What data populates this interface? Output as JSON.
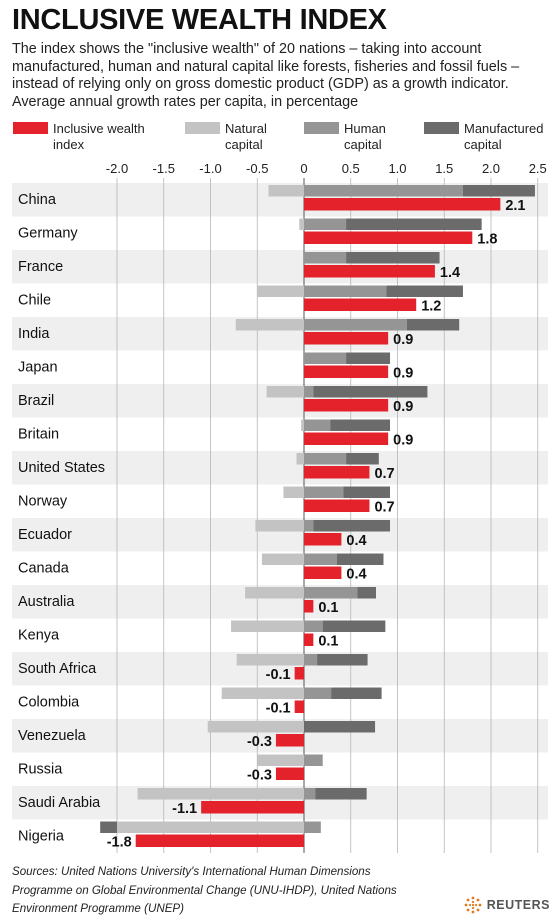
{
  "header": {
    "title": "INCLUSIVE WEALTH INDEX",
    "subtitle": "The index shows the \"inclusive wealth\" of 20 nations – taking into account manufactured, human and natural capital like forests, fisheries and fossil fuels – instead of relying only on gross domestic product (GDP) as a growth indicator. Average annual growth rates per capita, in percentage"
  },
  "footer": {
    "source": "Sources: United Nations University's International Human Dimensions Programme on Global Environmental Change (UNU-IHDP), United Nations Environment Programme (UNEP)",
    "brand": "REUTERS"
  },
  "colors": {
    "inclusive": "#e3222b",
    "natural": "#c3c3c3",
    "human": "#959595",
    "manufactured": "#6b6b6b",
    "band": "#efefef"
  },
  "chart_data": {
    "type": "bar",
    "orientation": "horizontal",
    "legend_position": "top",
    "xlim": [
      -2.0,
      2.5
    ],
    "x_ticks": [
      "-2.0",
      "-1.5",
      "-1.0",
      "-0.5",
      "0",
      "0.5",
      "1.0",
      "1.5",
      "2.0",
      "2.5"
    ],
    "grid": true,
    "legend": [
      {
        "key": "inclusive",
        "label_lines": [
          "Inclusive wealth",
          "index"
        ]
      },
      {
        "key": "natural",
        "label_lines": [
          "Natural",
          "capital"
        ]
      },
      {
        "key": "human",
        "label_lines": [
          "Human",
          "capital"
        ]
      },
      {
        "key": "manufactured",
        "label_lines": [
          "Manufactured",
          "capital"
        ]
      }
    ],
    "categories": [
      "China",
      "Germany",
      "France",
      "Chile",
      "India",
      "Japan",
      "Brazil",
      "Britain",
      "United States",
      "Norway",
      "Ecuador",
      "Canada",
      "Australia",
      "Kenya",
      "South Africa",
      "Colombia",
      "Venezuela",
      "Russia",
      "Saudi Arabia",
      "Nigeria"
    ],
    "series": [
      {
        "name": "Inclusive wealth index",
        "key": "inclusive",
        "values": [
          2.1,
          1.8,
          1.4,
          1.2,
          0.9,
          0.9,
          0.9,
          0.9,
          0.7,
          0.7,
          0.4,
          0.4,
          0.1,
          0.1,
          -0.1,
          -0.1,
          -0.3,
          -0.3,
          -1.1,
          -1.8
        ]
      },
      {
        "name": "Natural capital",
        "key": "natural",
        "values": [
          -0.38,
          -0.05,
          0,
          -0.5,
          -0.73,
          0,
          -0.4,
          -0.03,
          -0.08,
          -0.22,
          -0.52,
          -0.45,
          -0.63,
          -0.78,
          -0.72,
          -0.88,
          -1.03,
          -0.5,
          -1.78,
          -2.0
        ]
      },
      {
        "name": "Human capital",
        "key": "human",
        "values": [
          1.7,
          0.45,
          0.45,
          0.88,
          1.1,
          0.45,
          0.1,
          0.28,
          0.45,
          0.42,
          0.1,
          0.35,
          0.57,
          0.2,
          0.14,
          0.29,
          0,
          0.2,
          0.12,
          0.18
        ]
      },
      {
        "name": "Manufactured capital",
        "key": "manufactured",
        "values": [
          0.77,
          1.45,
          1.0,
          0.82,
          0.56,
          0.47,
          1.22,
          0.64,
          0.35,
          0.5,
          0.82,
          0.5,
          0.2,
          0.67,
          0.54,
          0.54,
          0.76,
          0,
          0.55,
          -0.18
        ]
      }
    ],
    "value_labels": [
      "2.1",
      "1.8",
      "1.4",
      "1.2",
      "0.9",
      "0.9",
      "0.9",
      "0.9",
      "0.7",
      "0.7",
      "0.4",
      "0.4",
      "0.1",
      "0.1",
      "-0.1",
      "-0.1",
      "-0.3",
      "-0.3",
      "-1.1",
      "-1.8"
    ]
  }
}
